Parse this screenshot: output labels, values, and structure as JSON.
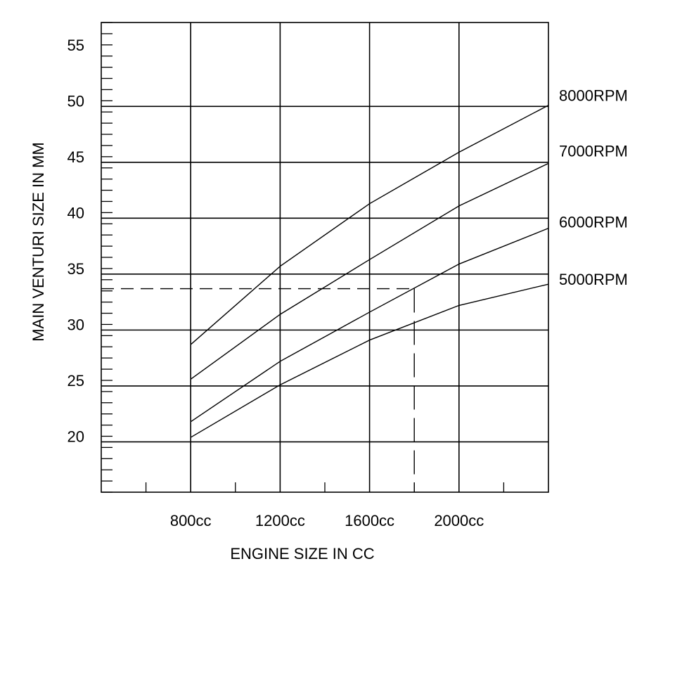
{
  "chart_data": {
    "type": "line",
    "xlabel": "ENGINE SIZE IN CC",
    "ylabel": "MAIN VENTURI SIZE IN MM",
    "xlim": [
      400,
      2400
    ],
    "ylim": [
      15,
      57
    ],
    "x_ticks": [
      {
        "value": 800,
        "label": "800cc"
      },
      {
        "value": 1200,
        "label": "1200cc"
      },
      {
        "value": 1600,
        "label": "1600cc"
      },
      {
        "value": 2000,
        "label": "2000cc"
      }
    ],
    "y_ticks": [
      {
        "value": 20,
        "label": "20"
      },
      {
        "value": 25,
        "label": "25"
      },
      {
        "value": 30,
        "label": "30"
      },
      {
        "value": 35,
        "label": "35"
      },
      {
        "value": 40,
        "label": "40"
      },
      {
        "value": 45,
        "label": "45"
      },
      {
        "value": 50,
        "label": "50"
      },
      {
        "value": 55,
        "label": "55"
      }
    ],
    "x_gridlines": [
      800,
      1200,
      1600,
      2000
    ],
    "y_gridlines": [
      19.5,
      24.5,
      29.5,
      34.5,
      39.5,
      44.5,
      49.5
    ],
    "series": [
      {
        "name": "8000RPM",
        "x": [
          800,
          1200,
          1600,
          2000,
          2400
        ],
        "y": [
          28.2,
          35.2,
          40.8,
          45.4,
          49.6
        ]
      },
      {
        "name": "7000RPM",
        "x": [
          800,
          1200,
          1600,
          2000,
          2400
        ],
        "y": [
          25.1,
          30.9,
          35.8,
          40.6,
          44.4
        ]
      },
      {
        "name": "6000RPM",
        "x": [
          800,
          1200,
          1600,
          2000,
          2400
        ],
        "y": [
          21.3,
          26.7,
          31.1,
          35.4,
          38.6
        ]
      },
      {
        "name": "5000RPM",
        "x": [
          800,
          1200,
          1600,
          2000,
          2400
        ],
        "y": [
          19.9,
          24.6,
          28.6,
          31.7,
          33.6
        ]
      }
    ],
    "reference": {
      "x": 1800,
      "y": 33.2
    },
    "grid": true
  }
}
